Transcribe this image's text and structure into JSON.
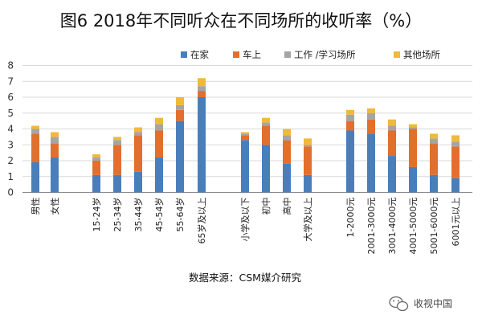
{
  "title": "图6 2018年不同听众在不同场所的收听率（%）",
  "source": "数据来源：CSM媒介研究",
  "watermark": "收视中国",
  "chart_data": {
    "type": "bar",
    "stacked": true,
    "title": "图6 2018年不同听众在不同场所的收听率（%）",
    "ylim": [
      0,
      8
    ],
    "yticks": [
      "0",
      "1",
      "2",
      "3",
      "4",
      "5",
      "6",
      "7",
      "8"
    ],
    "legend_position": "top-right",
    "groups": [
      {
        "categories": [
          "男性",
          "女性"
        ]
      },
      {
        "categories": [
          "15-24岁",
          "25-34岁",
          "35-44岁",
          "45-54岁",
          "55-64岁",
          "65岁及以上"
        ]
      },
      {
        "categories": [
          "小学及以下",
          "初中",
          "高中",
          "大学及以上"
        ]
      },
      {
        "categories": [
          "1-2000元",
          "2001-3000元",
          "3001-4000元",
          "4001-5000元",
          "5001-6000元",
          "6001元以上"
        ]
      }
    ],
    "categories": [
      "男性",
      "女性",
      "15-24岁",
      "25-34岁",
      "35-44岁",
      "45-54岁",
      "55-64岁",
      "65岁及以上",
      "小学及以下",
      "初中",
      "高中",
      "大学及以上",
      "1-2000元",
      "2001-3000元",
      "3001-4000元",
      "4001-5000元",
      "5001-6000元",
      "6001元以上"
    ],
    "series": [
      {
        "name": "在家",
        "color": "#4a7ebb",
        "values": [
          1.9,
          2.2,
          1.1,
          1.1,
          1.3,
          2.2,
          4.5,
          6.0,
          3.3,
          3.0,
          1.8,
          1.1,
          3.9,
          3.7,
          2.3,
          1.6,
          1.1,
          0.9
        ]
      },
      {
        "name": "车上",
        "color": "#e36f2d",
        "values": [
          1.8,
          0.9,
          0.9,
          1.9,
          2.3,
          1.7,
          0.7,
          0.4,
          0.3,
          1.2,
          1.5,
          1.8,
          0.6,
          0.9,
          1.6,
          2.4,
          2.0,
          2.0
        ]
      },
      {
        "name": "工作 /学习场所",
        "color": "#a5a5a5",
        "values": [
          0.3,
          0.4,
          0.2,
          0.3,
          0.2,
          0.4,
          0.3,
          0.3,
          0.1,
          0.2,
          0.3,
          0.1,
          0.4,
          0.4,
          0.3,
          0.1,
          0.3,
          0.3
        ]
      },
      {
        "name": "其他场所",
        "color": "#f1b93a",
        "values": [
          0.2,
          0.3,
          0.2,
          0.2,
          0.3,
          0.4,
          0.5,
          0.5,
          0.1,
          0.3,
          0.4,
          0.4,
          0.3,
          0.3,
          0.4,
          0.2,
          0.3,
          0.4
        ]
      }
    ]
  }
}
